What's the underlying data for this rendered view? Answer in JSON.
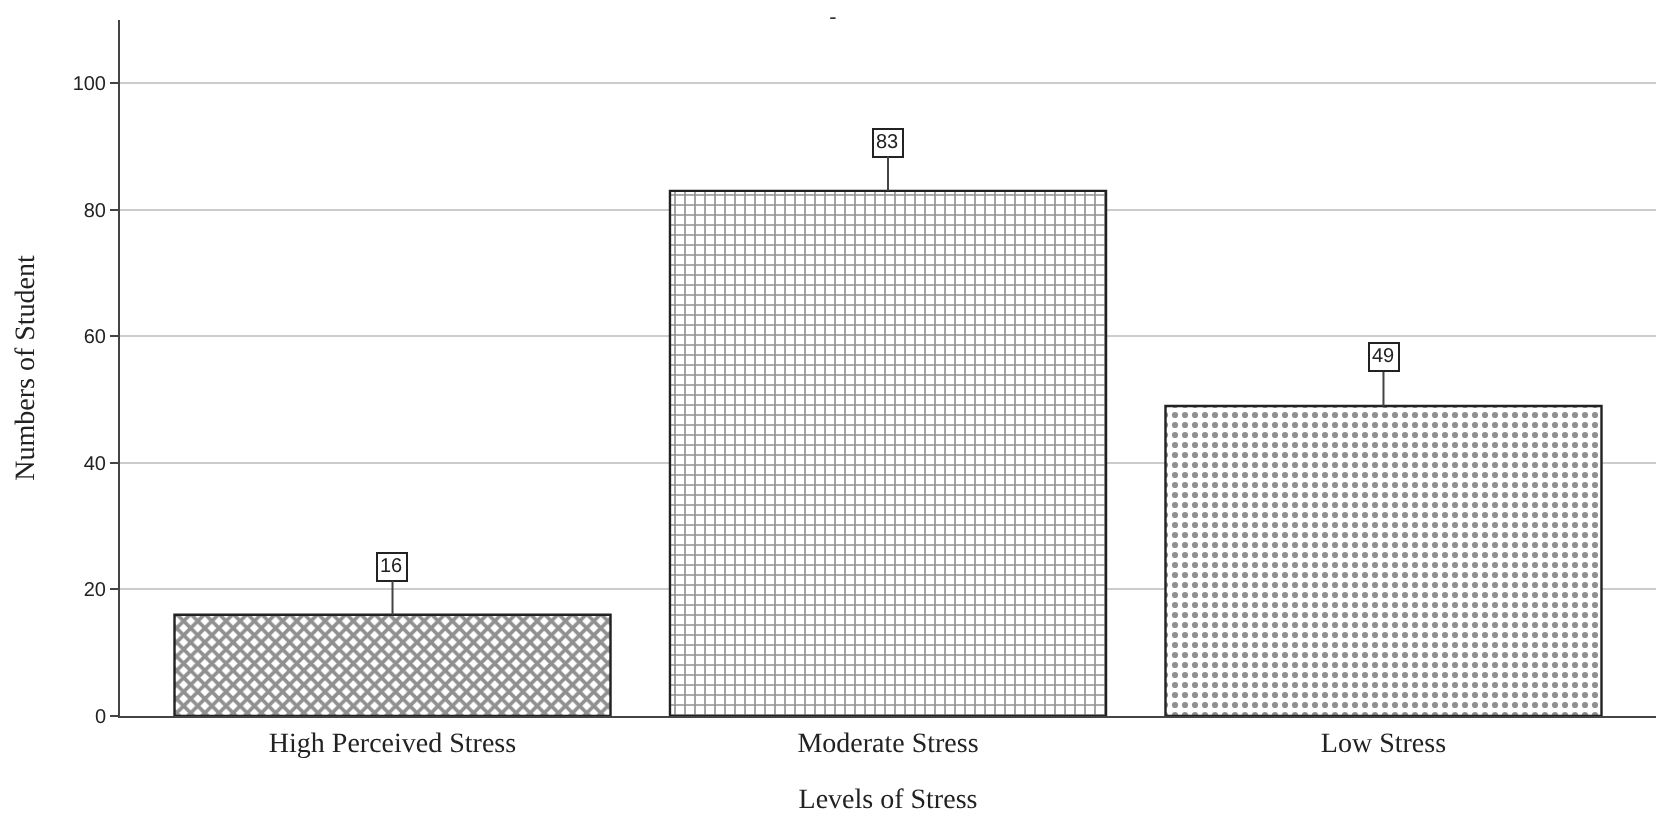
{
  "chart_data": {
    "type": "bar",
    "title": "-",
    "xlabel": "Levels of Stress",
    "ylabel": "Numbers of Student",
    "categories": [
      "High Perceived Stress",
      "Moderate Stress",
      "Low Stress"
    ],
    "values": [
      16,
      83,
      49
    ],
    "colors": [
      "#222222",
      "#222222",
      "#222222"
    ],
    "ylim": [
      0,
      110
    ],
    "yticks": [
      0,
      20,
      40,
      60,
      80,
      100
    ],
    "grid": "y",
    "data_labels": true
  }
}
